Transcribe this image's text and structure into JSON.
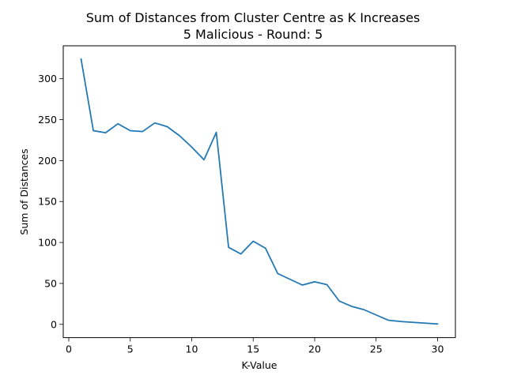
{
  "chart_data": {
    "type": "line",
    "title": "Sum of Distances from Cluster Centre as K Increases",
    "subtitle": "5 Malicious - Round: 5",
    "xlabel": "K-Value",
    "ylabel": "Sum of Distances",
    "xlim": [
      -0.45,
      31.45
    ],
    "ylim": [
      -16.2,
      340.2
    ],
    "xticks": [
      0,
      5,
      10,
      15,
      20,
      25,
      30
    ],
    "yticks": [
      0,
      50,
      100,
      150,
      200,
      250,
      300
    ],
    "grid": false,
    "line_color": "#1f77b4",
    "series": [
      {
        "x": [
          1,
          2,
          3,
          4,
          5,
          6,
          7,
          8,
          9,
          10,
          11,
          12,
          13,
          14,
          15,
          16,
          17,
          18,
          19,
          20,
          21,
          22,
          23,
          24,
          25,
          26,
          27,
          28,
          29,
          30
        ],
        "values": [
          324,
          236.5,
          234,
          245,
          236.5,
          235.5,
          246,
          241.5,
          230.5,
          216.5,
          201,
          234.5,
          94,
          86,
          101.5,
          93,
          62,
          55,
          48,
          52,
          48.5,
          28.5,
          22,
          18,
          11.5,
          5,
          3.5,
          2.5,
          1.5,
          0.5
        ]
      }
    ]
  }
}
